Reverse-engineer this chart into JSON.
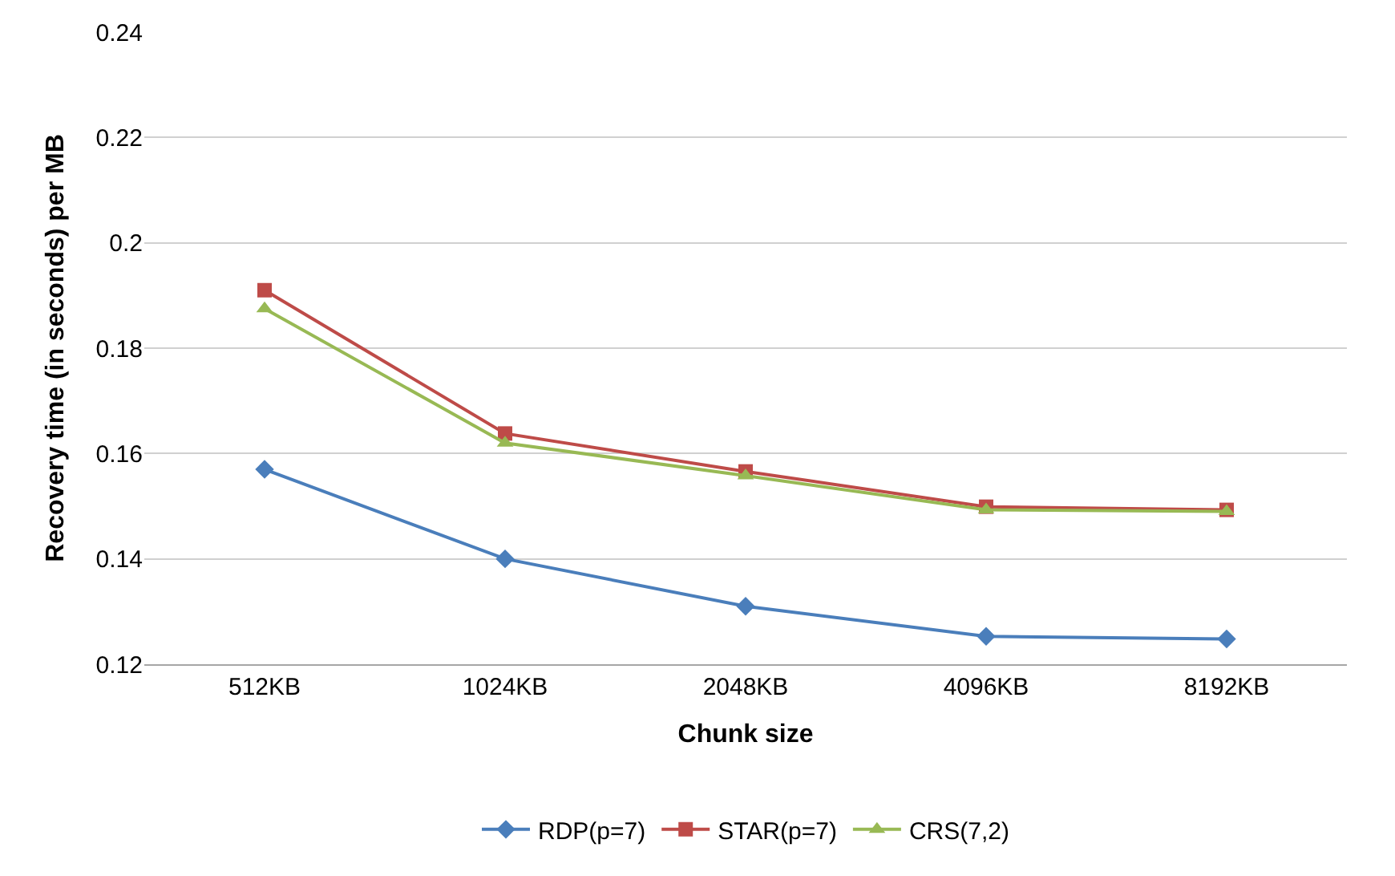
{
  "chart_data": {
    "type": "line",
    "xlabel": "Chunk size",
    "ylabel": "Recovery time (in seconds) per MB",
    "categories": [
      "512KB",
      "1024KB",
      "2048KB",
      "4096KB",
      "8192KB"
    ],
    "series": [
      {
        "name": "RDP(p=7)",
        "color": "#4a7ebb",
        "marker": "diamond",
        "values": [
          0.157,
          0.14,
          0.131,
          0.1253,
          0.1248
        ]
      },
      {
        "name": "STAR(p=7)",
        "color": "#be4b48",
        "marker": "square",
        "values": [
          0.191,
          0.1638,
          0.1566,
          0.1499,
          0.1493
        ]
      },
      {
        "name": "CRS(7,2)",
        "color": "#98b954",
        "marker": "triangle",
        "values": [
          0.1875,
          0.162,
          0.1558,
          0.1493,
          0.149
        ]
      }
    ],
    "ylim": [
      0.12,
      0.24
    ],
    "yticks": [
      0.12,
      0.14,
      0.16,
      0.18,
      0.2,
      0.22,
      0.24
    ],
    "grid": "y",
    "legend": "bottom",
    "line_style": "solid"
  }
}
